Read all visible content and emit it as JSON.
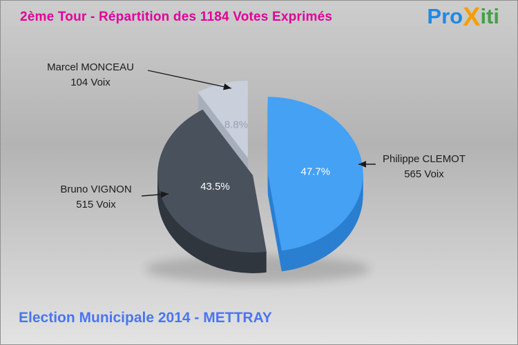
{
  "header": {
    "title": "2ème Tour - Répartition des 1184 Votes Exprimés",
    "title_color": "#e2009a",
    "logo": {
      "pro": "Pro",
      "x": "X",
      "iti": "iti",
      "pro_color": "#1e88e5",
      "x_color": "#f59e00",
      "iti_color": "#43a047"
    }
  },
  "footer": {
    "text": "Election Municipale 2014 - METTRAY",
    "color": "#4a75f0"
  },
  "chart_data": {
    "type": "pie",
    "title": "2ème Tour - Répartition des 1184 Votes Exprimés",
    "total": 1184,
    "total_label": "1184 Votes Exprimés",
    "direction": "clockwise",
    "start_angle_deg": 0,
    "slices": [
      {
        "label": "Philippe CLEMOT",
        "votes": 565,
        "votes_label": "565 Voix",
        "percent": 47.7,
        "percent_label": "47.7%",
        "color": "#44a1f4",
        "side_color": "#2b7fd0",
        "percent_color": "#ffffff"
      },
      {
        "label": "Bruno VIGNON",
        "votes": 515,
        "votes_label": "515 Voix",
        "percent": 43.5,
        "percent_label": "43.5%",
        "color": "#49515c",
        "side_color": "#30363e",
        "percent_color": "#ffffff"
      },
      {
        "label": "Marcel MONCEAU",
        "votes": 104,
        "votes_label": "104 Voix",
        "percent": 8.8,
        "percent_label": "8.8%",
        "color": "#c9d0dc",
        "side_color": "#a7afbd",
        "percent_color": "#99a1ae"
      }
    ]
  }
}
